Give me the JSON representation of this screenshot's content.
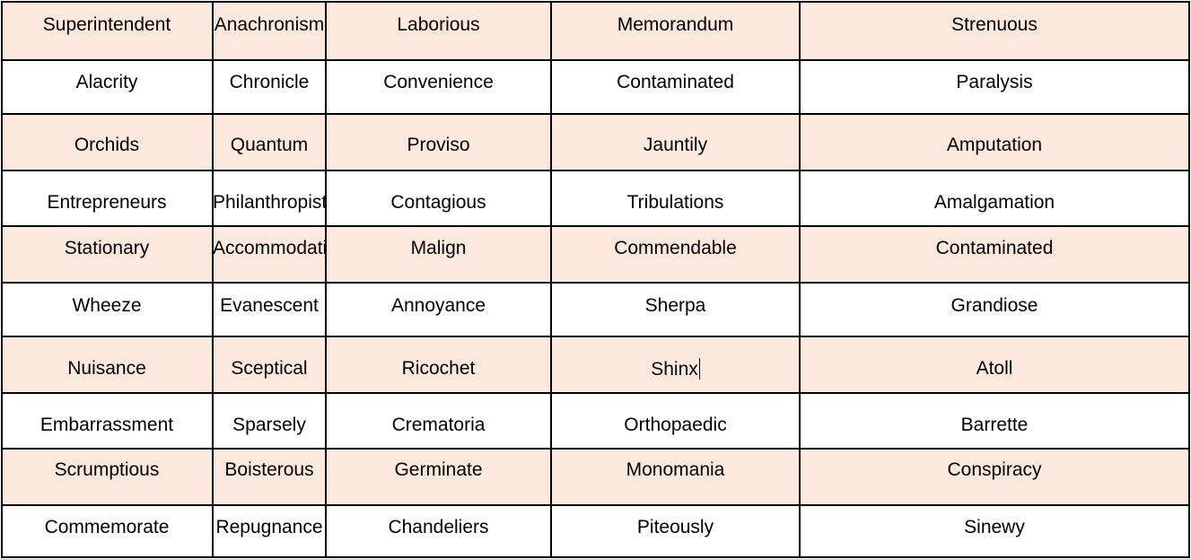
{
  "table": {
    "rows": [
      {
        "shaded": true,
        "cells": [
          "Superintendent",
          "Anachronism",
          "Laborious",
          "Memorandum",
          "Strenuous"
        ]
      },
      {
        "shaded": false,
        "cells": [
          "Alacrity",
          "Chronicle",
          "Convenience",
          "Contaminated",
          "Paralysis"
        ]
      },
      {
        "shaded": true,
        "cells": [
          "Orchids",
          "Quantum",
          "Proviso",
          "Jauntily",
          "Amputation"
        ]
      },
      {
        "shaded": false,
        "cells": [
          "Entrepreneurs",
          "Philanthropist",
          "Contagious",
          "Tribulations",
          "Amalgamation"
        ]
      },
      {
        "shaded": true,
        "cells": [
          "Stationary",
          "Accommodation",
          "Malign",
          "Commendable",
          "Contaminated"
        ]
      },
      {
        "shaded": false,
        "cells": [
          "Wheeze",
          "Evanescent",
          "Annoyance",
          "Sherpa",
          "Grandiose"
        ]
      },
      {
        "shaded": true,
        "cells": [
          "Nuisance",
          "Sceptical",
          "Ricochet",
          "Shinx",
          "Atoll"
        ]
      },
      {
        "shaded": false,
        "cells": [
          "Embarrassment",
          "Sparsely",
          "Crematoria",
          "Orthopaedic",
          "Barrette"
        ]
      },
      {
        "shaded": true,
        "cells": [
          "Scrumptious",
          "Boisterous",
          "Germinate",
          "Monomania",
          "Conspiracy"
        ]
      },
      {
        "shaded": false,
        "cells": [
          "Commemorate",
          "Repugnance",
          "Chandeliers",
          "Piteously",
          "Sinewy"
        ]
      }
    ]
  },
  "colors": {
    "shaded_row": "#fce8dc",
    "plain_row": "#ffffff",
    "border": "#000000"
  }
}
